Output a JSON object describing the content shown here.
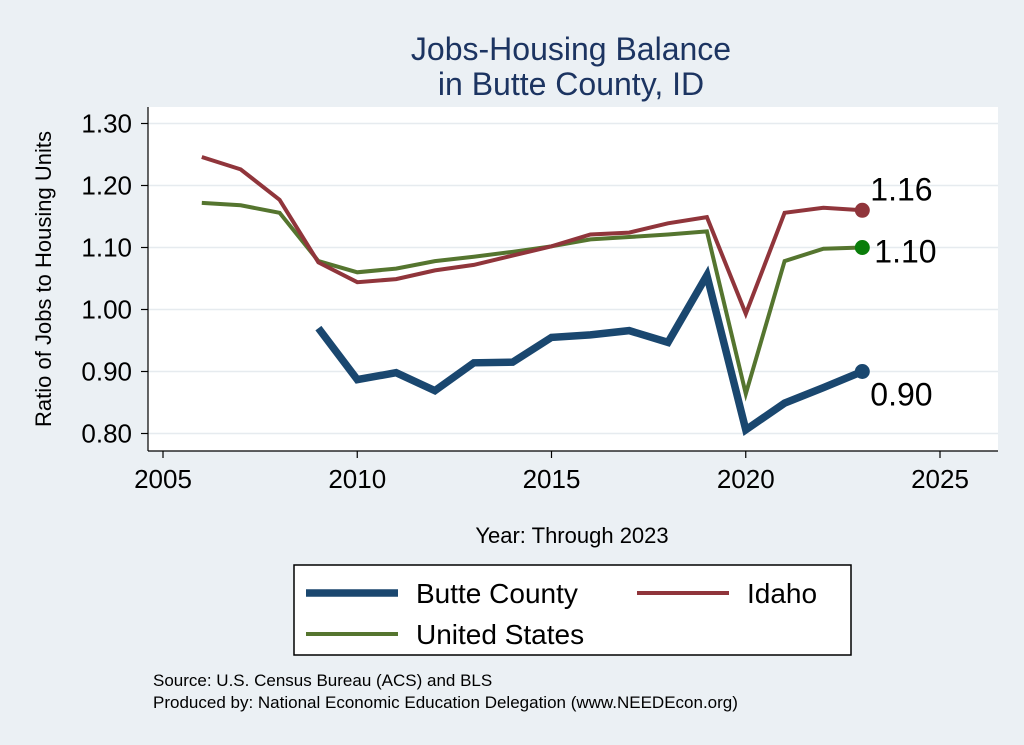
{
  "chart_data": {
    "type": "line",
    "title": [
      "Jobs-Housing Balance",
      "in Butte County, ID"
    ],
    "xlabel": "Year: Through 2023",
    "ylabel": "Ratio of Jobs to Housing Units",
    "xlim": [
      2005,
      2025
    ],
    "ylim": [
      0.8,
      1.3
    ],
    "xticks": [
      2005,
      2010,
      2015,
      2020,
      2025
    ],
    "yticks": [
      {
        "value": 0.8,
        "label": "0.80"
      },
      {
        "value": 0.9,
        "label": "0.90"
      },
      {
        "value": 1.0,
        "label": "1.00"
      },
      {
        "value": 1.1,
        "label": "1.10"
      },
      {
        "value": 1.2,
        "label": "1.20"
      },
      {
        "value": 1.3,
        "label": "1.30"
      }
    ],
    "grid": true,
    "legend_position": "bottom",
    "series": [
      {
        "name": "Butte County",
        "color": "#1a476f",
        "x": [
          2009,
          2010,
          2011,
          2012,
          2013,
          2014,
          2015,
          2016,
          2017,
          2018,
          2019,
          2020,
          2021,
          2022,
          2023
        ],
        "values": [
          0.97,
          0.887,
          0.898,
          0.869,
          0.914,
          0.915,
          0.955,
          0.959,
          0.966,
          0.947,
          1.055,
          0.806,
          0.849,
          0.874,
          0.9
        ],
        "end_label": "0.90"
      },
      {
        "name": "Idaho",
        "color": "#90353b",
        "x": [
          2006,
          2007,
          2008,
          2009,
          2010,
          2011,
          2012,
          2013,
          2014,
          2015,
          2016,
          2017,
          2018,
          2019,
          2020,
          2021,
          2022,
          2023
        ],
        "values": [
          1.246,
          1.226,
          1.177,
          1.076,
          1.044,
          1.049,
          1.063,
          1.072,
          1.087,
          1.102,
          1.121,
          1.124,
          1.139,
          1.149,
          0.993,
          1.156,
          1.164,
          1.16
        ],
        "end_label": "1.16"
      },
      {
        "name": "United States",
        "color": "#55752f",
        "x": [
          2006,
          2007,
          2008,
          2009,
          2010,
          2011,
          2012,
          2013,
          2014,
          2015,
          2016,
          2017,
          2018,
          2019,
          2020,
          2021,
          2022,
          2023
        ],
        "values": [
          1.172,
          1.168,
          1.156,
          1.078,
          1.06,
          1.066,
          1.078,
          1.085,
          1.093,
          1.102,
          1.113,
          1.117,
          1.121,
          1.126,
          0.864,
          1.078,
          1.098,
          1.1
        ],
        "end_label": "1.10",
        "marker_color": "#0a7d0a"
      }
    ],
    "legend_order": [
      "Butte County",
      "Idaho",
      "United States"
    ],
    "notes": [
      "Source: U.S. Census Bureau (ACS) and BLS",
      "Produced by: National Economic Education Delegation (www.NEEDEcon.org)"
    ]
  }
}
